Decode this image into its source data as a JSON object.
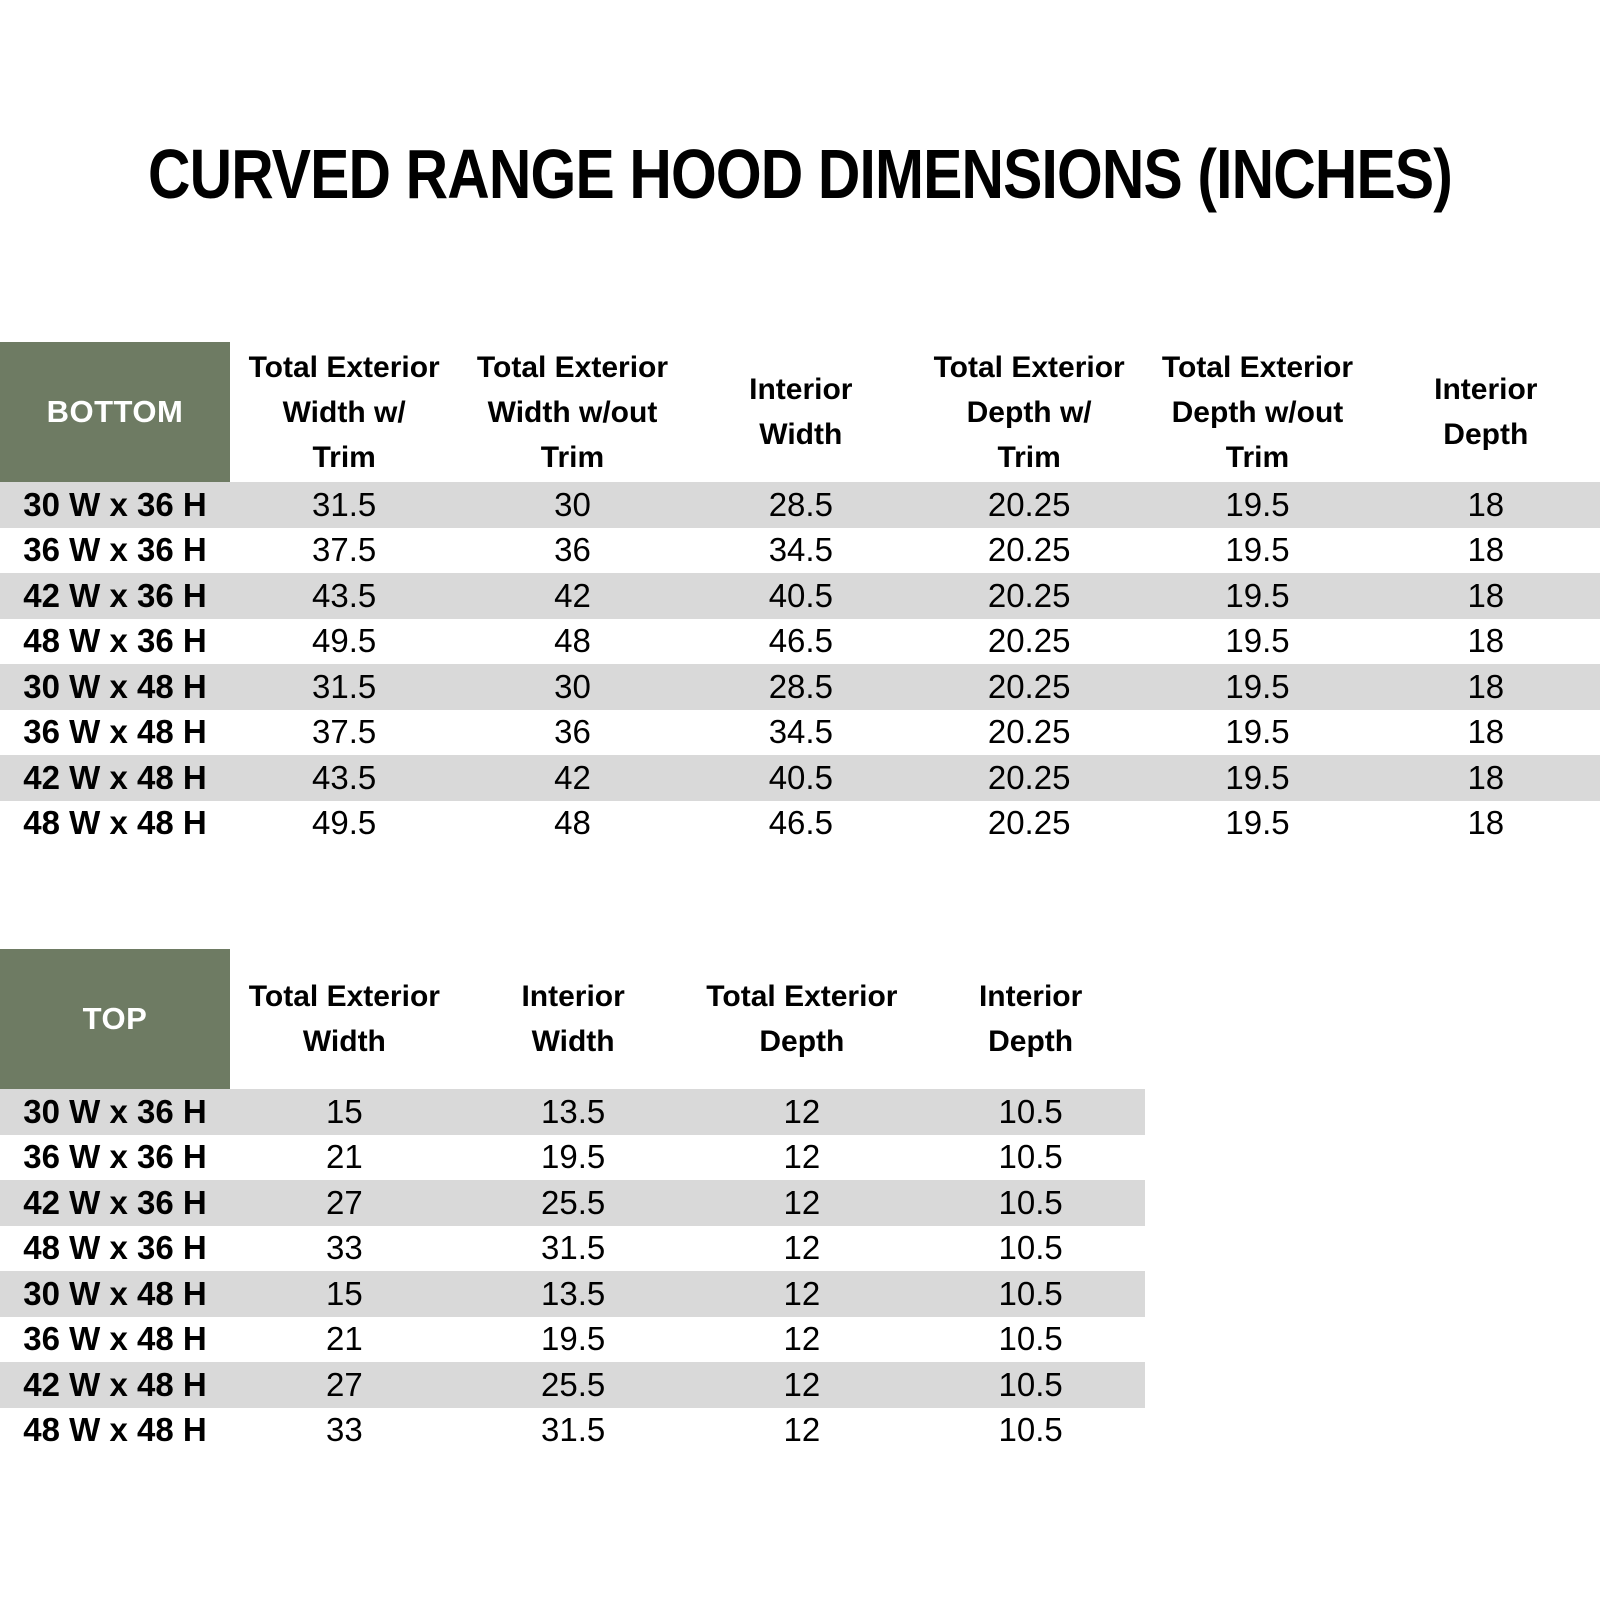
{
  "page": {
    "title": "CURVED RANGE HOOD DIMENSIONS (INCHES)"
  },
  "colors": {
    "header_cell_green": "#6E7B63",
    "stripe_gray": "#D9D9D9",
    "text_black": "#000000",
    "corner_text_white": "#FFFFFF"
  },
  "bottom_table": {
    "corner_label": "BOTTOM",
    "columns": [
      "Total Exterior\nWidth w/\nTrim",
      "Total Exterior\nWidth w/out\nTrim",
      "Interior\nWidth",
      "Total Exterior\nDepth w/\nTrim",
      "Total Exterior\nDepth w/out\nTrim",
      "Interior\nDepth"
    ],
    "rows": [
      {
        "label": "30 W x 36 H",
        "values": [
          "31.5",
          "30",
          "28.5",
          "20.25",
          "19.5",
          "18"
        ]
      },
      {
        "label": "36 W x 36 H",
        "values": [
          "37.5",
          "36",
          "34.5",
          "20.25",
          "19.5",
          "18"
        ]
      },
      {
        "label": "42 W x 36 H",
        "values": [
          "43.5",
          "42",
          "40.5",
          "20.25",
          "19.5",
          "18"
        ]
      },
      {
        "label": "48 W x 36 H",
        "values": [
          "49.5",
          "48",
          "46.5",
          "20.25",
          "19.5",
          "18"
        ]
      },
      {
        "label": "30 W x 48 H",
        "values": [
          "31.5",
          "30",
          "28.5",
          "20.25",
          "19.5",
          "18"
        ]
      },
      {
        "label": "36 W x 48 H",
        "values": [
          "37.5",
          "36",
          "34.5",
          "20.25",
          "19.5",
          "18"
        ]
      },
      {
        "label": "42 W x 48 H",
        "values": [
          "43.5",
          "42",
          "40.5",
          "20.25",
          "19.5",
          "18"
        ]
      },
      {
        "label": "48 W x 48 H",
        "values": [
          "49.5",
          "48",
          "46.5",
          "20.25",
          "19.5",
          "18"
        ]
      }
    ]
  },
  "top_table": {
    "corner_label": "TOP",
    "columns": [
      "Total Exterior\nWidth",
      "Interior\nWidth",
      "Total Exterior\nDepth",
      "Interior\nDepth"
    ],
    "rows": [
      {
        "label": "30 W x 36 H",
        "values": [
          "15",
          "13.5",
          "12",
          "10.5"
        ]
      },
      {
        "label": "36 W x 36 H",
        "values": [
          "21",
          "19.5",
          "12",
          "10.5"
        ]
      },
      {
        "label": "42 W x 36 H",
        "values": [
          "27",
          "25.5",
          "12",
          "10.5"
        ]
      },
      {
        "label": "48 W x 36 H",
        "values": [
          "33",
          "31.5",
          "12",
          "10.5"
        ]
      },
      {
        "label": "30 W x 48 H",
        "values": [
          "15",
          "13.5",
          "12",
          "10.5"
        ]
      },
      {
        "label": "36 W x 48 H",
        "values": [
          "21",
          "19.5",
          "12",
          "10.5"
        ]
      },
      {
        "label": "42 W x 48 H",
        "values": [
          "27",
          "25.5",
          "12",
          "10.5"
        ]
      },
      {
        "label": "48 W x 48 H",
        "values": [
          "33",
          "31.5",
          "12",
          "10.5"
        ]
      }
    ]
  }
}
